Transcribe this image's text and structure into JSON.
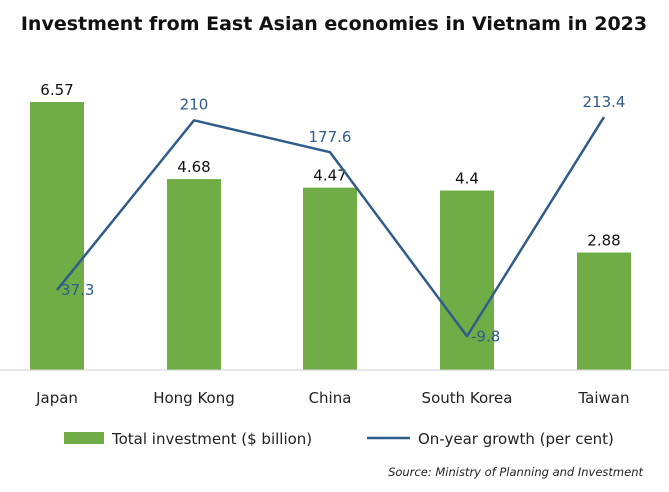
{
  "chart_data": {
    "type": "bar",
    "title": "Investment from East Asian economies in Vietnam in 2023",
    "categories": [
      "Japan",
      "Hong Kong",
      "China",
      "South Korea",
      "Taiwan"
    ],
    "series": [
      {
        "name": "Total investment ($ billion)",
        "type": "bar",
        "values": [
          6.57,
          4.68,
          4.47,
          4.4,
          2.88
        ],
        "labels": [
          "6.57",
          "4.68",
          "4.47",
          "4.4",
          "2.88"
        ],
        "color": "#70ad47"
      },
      {
        "name": "On-year growth (per cent)",
        "type": "line",
        "values": [
          37.3,
          210,
          177.6,
          -9.8,
          213.4
        ],
        "labels": [
          "37.3",
          "210",
          "177.6",
          "-9.8",
          "213.4"
        ],
        "color": "#2f5c8a"
      }
    ],
    "grid": false,
    "legend": "bottom",
    "source": "Source: Ministry of Planning and Investment"
  }
}
